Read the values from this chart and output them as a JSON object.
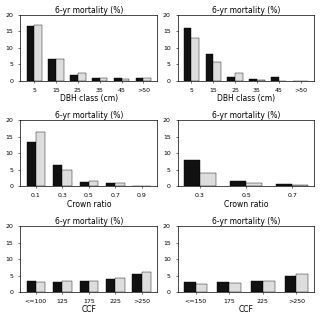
{
  "top_left": {
    "title": "6-yr mortality (%)",
    "xlabel": "DBH class (cm)",
    "categories": [
      "5",
      "15",
      "25",
      "35",
      "45",
      ">50"
    ],
    "observed": [
      16.5,
      6.5,
      1.8,
      0.8,
      0.7,
      0.8
    ],
    "predicted": [
      17.0,
      6.5,
      2.2,
      0.7,
      0.5,
      0.7
    ],
    "ylim": [
      0,
      20
    ],
    "yticks": [
      0,
      5,
      10,
      15,
      20
    ]
  },
  "top_right": {
    "title": "6-yr mortality (%)",
    "xlabel": "DBH class (cm)",
    "categories": [
      "5",
      "15",
      "25",
      "35",
      "45",
      ">50"
    ],
    "observed": [
      16.0,
      8.0,
      1.0,
      0.4,
      1.2,
      0.0
    ],
    "predicted": [
      13.0,
      5.5,
      2.2,
      0.3,
      0.0,
      0.0
    ],
    "ylim": [
      0,
      20
    ],
    "yticks": [
      0,
      5,
      10,
      15,
      20
    ]
  },
  "mid_left": {
    "title": "6-yr mortality (%)",
    "xlabel": "Crown ratio",
    "categories": [
      "0.1",
      "0.3",
      "0.5",
      "0.7",
      "0.9"
    ],
    "observed": [
      13.5,
      6.5,
      1.2,
      1.0,
      0.0
    ],
    "predicted": [
      16.5,
      5.0,
      1.5,
      1.0,
      0.0
    ],
    "ylim": [
      0,
      20
    ],
    "yticks": [
      0,
      5,
      10,
      15,
      20
    ]
  },
  "mid_right": {
    "title": "6-yr mortality (%)",
    "xlabel": "Crown ratio",
    "categories": [
      "0.3",
      "0.5",
      "0.7"
    ],
    "observed": [
      8.0,
      1.5,
      0.8
    ],
    "predicted": [
      4.0,
      1.0,
      0.3
    ],
    "ylim": [
      0,
      20
    ],
    "yticks": [
      0,
      5,
      10,
      15,
      20
    ]
  },
  "bot_left": {
    "title": "6-yr mortality (%)",
    "xlabel": "CCF",
    "categories": [
      "<=100",
      "125",
      "175",
      "225",
      ">250"
    ],
    "observed": [
      3.5,
      3.2,
      3.5,
      4.0,
      5.5
    ],
    "predicted": [
      3.0,
      3.5,
      3.5,
      4.2,
      6.0
    ],
    "ylim": [
      0,
      20
    ],
    "yticks": [
      0,
      5,
      10,
      15,
      20
    ]
  },
  "bot_right": {
    "title": "6-yr mortality (%)",
    "xlabel": "CCF",
    "categories": [
      "<=150",
      "175",
      "225",
      ">250"
    ],
    "observed": [
      3.0,
      3.0,
      3.5,
      5.0
    ],
    "predicted": [
      2.5,
      2.8,
      3.5,
      5.5
    ],
    "ylim": [
      0,
      20
    ],
    "yticks": [
      0,
      5,
      10,
      15,
      20
    ]
  },
  "obs_color": "#111111",
  "pred_color": "#dddddd",
  "bar_width": 0.35,
  "title_fontsize": 5.5,
  "tick_fontsize": 4.5,
  "label_fontsize": 5.5
}
